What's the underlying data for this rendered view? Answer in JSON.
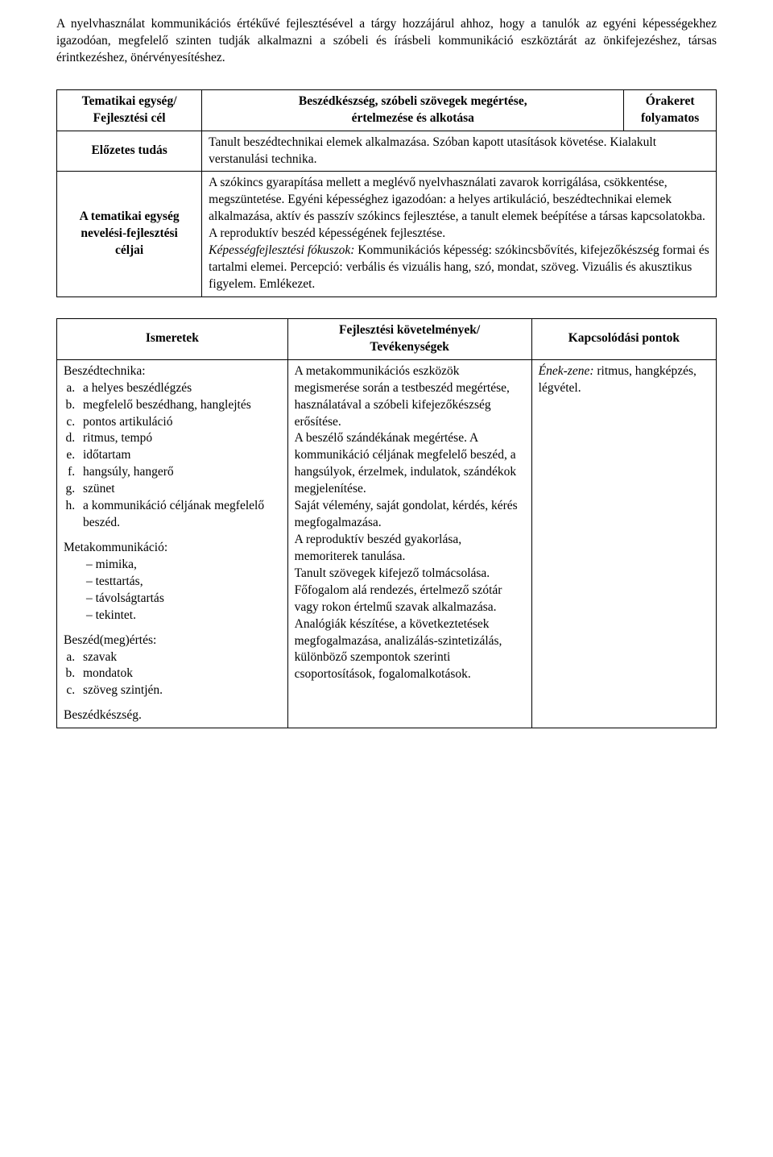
{
  "intro": "A nyelvhasználat kommunikációs értékűvé fejlesztésével a tárgy hozzájárul ahhoz, hogy a tanulók az egyéni képességekhez igazodóan, megfelelő szinten tudják alkalmazni a szóbeli és írásbeli kommunikáció eszköztárát az önkifejezéshez, társas érintkezéshez, önérvényesítéshez.",
  "table1": {
    "r1c1a": "Tematikai egység/",
    "r1c1b": "Fejlesztési cél",
    "r1c2a": "Beszédkészség, szóbeli szövegek megértése,",
    "r1c2b": "értelmezése és alkotása",
    "r1c3a": "Órakeret",
    "r1c3b": "folyamatos",
    "r2c1": "Előzetes tudás",
    "r2c2": "Tanult beszédtechnikai elemek alkalmazása. Szóban kapott utasítások követése. Kialakult verstanulási technika.",
    "r3c1a": "A tematikai egység",
    "r3c1b": "nevelési-fejlesztési",
    "r3c1c": "céljai",
    "r3c2_p1": "A szókincs gyarapítása mellett a meglévő nyelvhasználati zavarok korrigálása, csökkentése, megszüntetése. Egyéni képességhez igazodóan: a helyes artikuláció, beszédtechnikai elemek alkalmazása, aktív és passzív szókincs fejlesztése, a tanult elemek beépítése a társas kapcsolatokba. A reproduktív beszéd képességének fejlesztése.",
    "r3c2_it": "Képességfejlesztési fókuszok:",
    "r3c2_p2": " Kommunikációs képesség: szókincsbővítés, kifejezőkészség formai és tartalmi elemei. Percepció: verbális és vizuális hang, szó, mondat, szöveg. Vizuális és akusztikus figyelem. Emlékezet."
  },
  "table2": {
    "h1": "Ismeretek",
    "h2a": "Fejlesztési követelmények/",
    "h2b": "Tevékenységek",
    "h3": "Kapcsolódási pontok",
    "col1": {
      "bt_title": "Beszédtechnika:",
      "bt_a": "a helyes beszédlégzés",
      "bt_b": "megfelelő beszédhang, hanglejtés",
      "bt_c": "pontos artikuláció",
      "bt_d": "ritmus, tempó",
      "bt_e": "időtartam",
      "bt_f": "hangsúly, hangerő",
      "bt_g": "szünet",
      "bt_h": "a kommunikáció céljának megfelelő beszéd.",
      "mk_title": "Metakommunikáció:",
      "mk_1": "mimika,",
      "mk_2": "testtartás,",
      "mk_3": "távolságtartás",
      "mk_4": "tekintet.",
      "bm_title": "Beszéd(meg)értés:",
      "bm_a": "szavak",
      "bm_b": "mondatok",
      "bm_c": "szöveg szintjén.",
      "bk_title": "Beszédkészség."
    },
    "col2": {
      "p1": "A metakommunikációs eszközök megismerése során a testbeszéd megértése, használatával a szóbeli kifejezőkészség erősítése.",
      "p2": "A beszélő szándékának megértése. A kommunikáció céljának megfelelő beszéd, a hangsúlyok, érzelmek, indulatok, szándékok megjelenítése.",
      "p3": "Saját vélemény, saját gondolat, kérdés, kérés megfogalmazása.",
      "p4": "A reproduktív beszéd gyakorlása, memoriterek tanulása.",
      "p5": "Tanult szövegek kifejező tolmácsolása.",
      "p6": "Főfogalom alá rendezés, értelmező szótár vagy rokon értelmű szavak alkalmazása.",
      "p7": "Analógiák készítése, a következtetések megfogalmazása, analizálás-szintetizálás, különböző szempontok szerinti csoportosítások, fogalomalkotások."
    },
    "col3": {
      "it": "Ének-zene:",
      "rest": " ritmus, hangképzés, légvétel."
    }
  }
}
